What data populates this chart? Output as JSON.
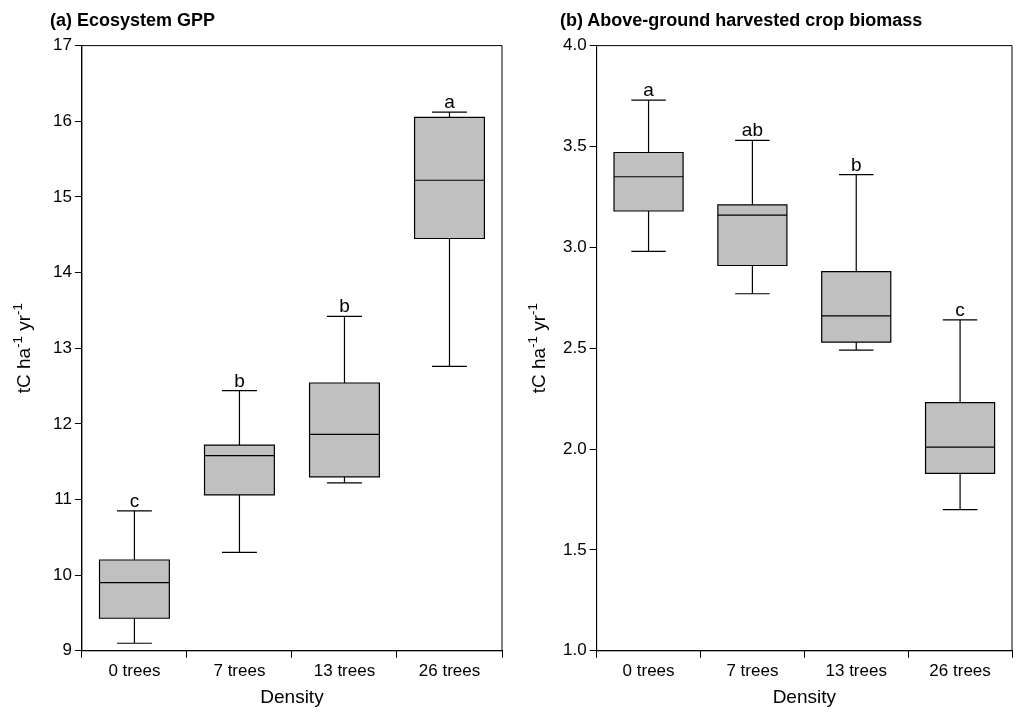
{
  "chart_data": [
    {
      "type": "box",
      "title": "(a) Ecosystem GPP",
      "xlabel": "Density",
      "ylabel": "tC ha$^{-1}$ yr$^{-1}$",
      "categories": [
        "0 trees",
        "7 trees",
        "13 trees",
        "26 trees"
      ],
      "color": "#c0c0c0",
      "grid": false,
      "boxes": [
        {
          "low": 9.1,
          "q1": 9.43,
          "median": 9.9,
          "q3": 10.2,
          "high": 10.85
        },
        {
          "low": 10.3,
          "q1": 11.06,
          "median": 11.58,
          "q3": 11.72,
          "high": 12.44
        },
        {
          "low": 11.22,
          "q1": 11.3,
          "median": 11.86,
          "q3": 12.54,
          "high": 13.42
        },
        {
          "low": 12.76,
          "q1": 14.45,
          "median": 15.22,
          "q3": 16.05,
          "high": 16.12
        }
      ],
      "ylim": [
        9,
        17
      ],
      "yticks": [
        9,
        10,
        11,
        12,
        13,
        14,
        15,
        16,
        17
      ],
      "annotations": [
        {
          "text": "c",
          "x": "0 trees",
          "y": 10.85
        },
        {
          "text": "b",
          "x": "7 trees",
          "y": 12.44
        },
        {
          "text": "b",
          "x": "13 trees",
          "y": 13.42
        },
        {
          "text": "a",
          "x": "26 trees",
          "y": 16.12
        }
      ]
    },
    {
      "type": "box",
      "title": "(b) Above-ground harvested crop biomass",
      "xlabel": "Density",
      "ylabel": "tC ha$^{-1}$ yr$^{-1}$",
      "categories": [
        "0 trees",
        "7 trees",
        "13 trees",
        "26 trees"
      ],
      "color": "#c0c0c0",
      "grid": false,
      "boxes": [
        {
          "low": 2.98,
          "q1": 3.18,
          "median": 3.35,
          "q3": 3.47,
          "high": 3.73
        },
        {
          "low": 2.77,
          "q1": 2.91,
          "median": 3.16,
          "q3": 3.21,
          "high": 3.53
        },
        {
          "low": 2.49,
          "q1": 2.53,
          "median": 2.66,
          "q3": 2.88,
          "high": 3.36
        },
        {
          "low": 1.7,
          "q1": 1.88,
          "median": 2.01,
          "q3": 2.23,
          "high": 2.64
        }
      ],
      "ylim": [
        1,
        4
      ],
      "yticks": [
        {
          "value": 1,
          "label": "1.0"
        },
        {
          "value": 1.5,
          "label": "1.5"
        },
        {
          "value": 2,
          "label": "2.0"
        },
        {
          "value": 2.5,
          "label": "2.5"
        },
        {
          "value": 3,
          "label": "3.0"
        },
        {
          "value": 3.5,
          "label": "3.5"
        },
        {
          "value": 4,
          "label": "4.0"
        }
      ],
      "annotations": [
        {
          "text": "a",
          "x": "0 trees",
          "y": 3.73
        },
        {
          "text": "ab",
          "x": "7 trees",
          "y": 3.53
        },
        {
          "text": "b",
          "x": "13 trees",
          "y": 3.36
        },
        {
          "text": "c",
          "x": "26 trees",
          "y": 2.64
        }
      ]
    }
  ]
}
